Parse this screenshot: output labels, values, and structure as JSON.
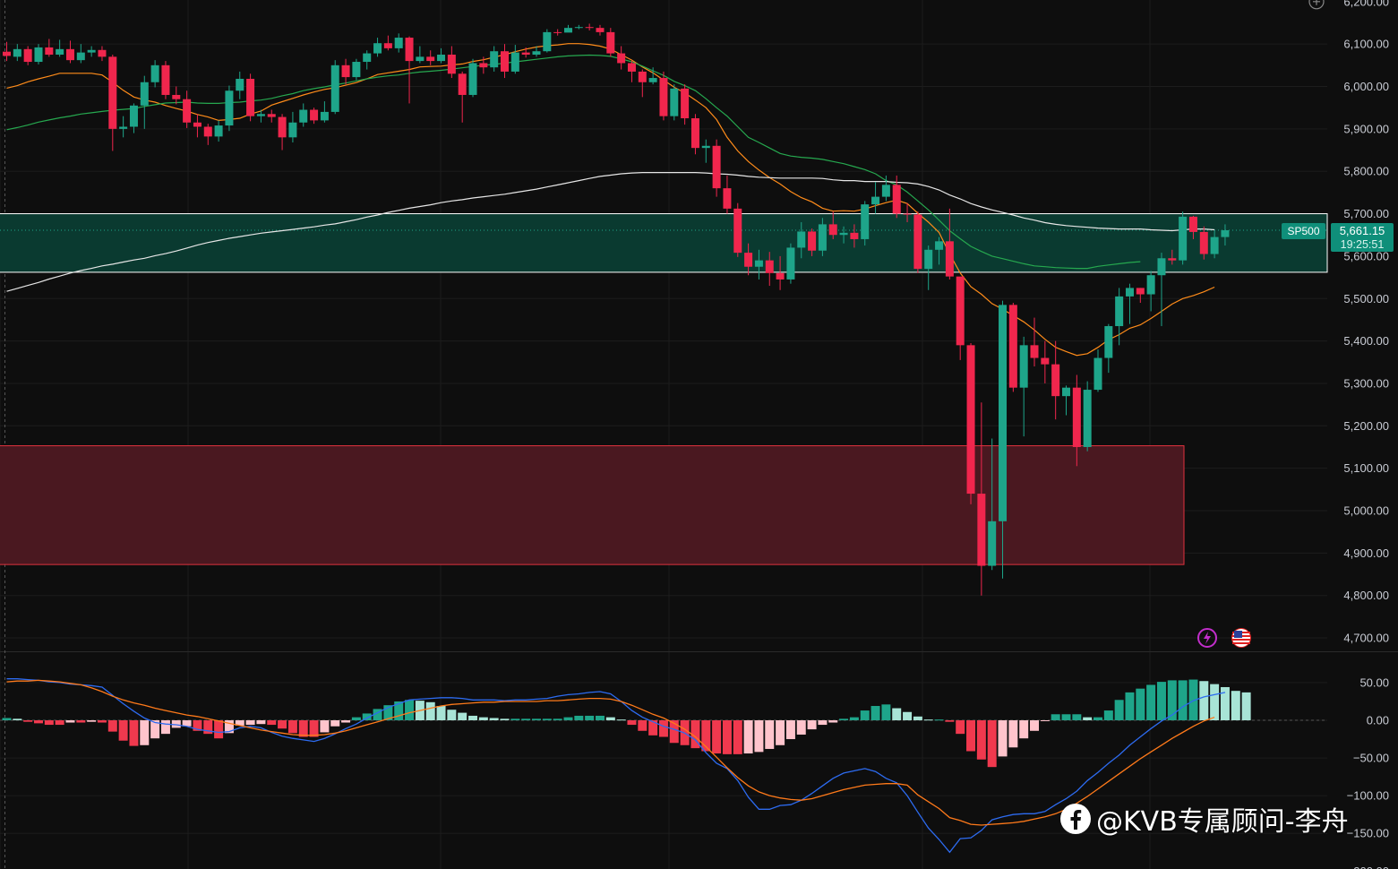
{
  "chart_data": {
    "type": "candlestick",
    "symbol": "SP500",
    "last_price": "5,661.15",
    "countdown": "19:25:51",
    "price_axis_ticks": [
      "6,100.00",
      "6,000.00",
      "5,900.00",
      "5,800.00",
      "5,700.00",
      "5,600.00",
      "5,500.00",
      "5,400.00",
      "5,300.00",
      "5,200.00",
      "5,100.00",
      "5,000.00",
      "4,900.00",
      "4,800.00",
      "4,700.00"
    ],
    "price_axis_top_partial": "6,200.00",
    "macd_axis_ticks": [
      "50.00",
      "0.00",
      "−50.00",
      "−100.00",
      "−150.00"
    ],
    "macd_axis_bottom_partial": "−200.00",
    "price_range": [
      4640,
      6210
    ],
    "macd_range": [
      -200,
      75
    ],
    "zones": [
      {
        "name": "upper-zone",
        "from": 5562,
        "to": 5700,
        "color": "#0a3a30",
        "border": "#ffffff"
      },
      {
        "name": "lower-zone",
        "from": 4873,
        "to": 5153,
        "color": "#4a1820",
        "border": "#e0323e"
      }
    ],
    "candles": [
      [
        6082,
        6072,
        6105,
        6060
      ],
      [
        6070,
        6088,
        6100,
        6060
      ],
      [
        6088,
        6058,
        6095,
        6050
      ],
      [
        6058,
        6092,
        6100,
        6052
      ],
      [
        6092,
        6075,
        6112,
        6070
      ],
      [
        6075,
        6088,
        6110,
        6070
      ],
      [
        6088,
        6062,
        6108,
        6055
      ],
      [
        6062,
        6080,
        6100,
        6055
      ],
      [
        6080,
        6086,
        6095,
        6070
      ],
      [
        6086,
        6070,
        6095,
        6060
      ],
      [
        6070,
        5900,
        6075,
        5848
      ],
      [
        5900,
        5905,
        5930,
        5880
      ],
      [
        5905,
        5955,
        5960,
        5890
      ],
      [
        5955,
        6010,
        6025,
        5900
      ],
      [
        6010,
        6050,
        6062,
        5998
      ],
      [
        6050,
        5980,
        6060,
        5970
      ],
      [
        5980,
        5970,
        6000,
        5958
      ],
      [
        5970,
        5915,
        5990,
        5902
      ],
      [
        5915,
        5905,
        5935,
        5880
      ],
      [
        5905,
        5882,
        5912,
        5862
      ],
      [
        5882,
        5908,
        5920,
        5870
      ],
      [
        5908,
        5990,
        6002,
        5895
      ],
      [
        5990,
        6018,
        6035,
        5970
      ],
      [
        6018,
        5930,
        6030,
        5918
      ],
      [
        5930,
        5935,
        5945,
        5915
      ],
      [
        5935,
        5928,
        5945,
        5915
      ],
      [
        5928,
        5880,
        5935,
        5850
      ],
      [
        5880,
        5915,
        5940,
        5868
      ],
      [
        5915,
        5945,
        5960,
        5905
      ],
      [
        5945,
        5920,
        5950,
        5912
      ],
      [
        5920,
        5940,
        5965,
        5915
      ],
      [
        5940,
        6050,
        6062,
        5935
      ],
      [
        6050,
        6022,
        6065,
        6005
      ],
      [
        6022,
        6058,
        6065,
        6015
      ],
      [
        6058,
        6078,
        6085,
        6040
      ],
      [
        6078,
        6102,
        6115,
        6070
      ],
      [
        6102,
        6090,
        6120,
        6085
      ],
      [
        6090,
        6115,
        6125,
        6080
      ],
      [
        6115,
        6060,
        6118,
        5960
      ],
      [
        6060,
        6070,
        6095,
        6055
      ],
      [
        6070,
        6060,
        6085,
        6050
      ],
      [
        6060,
        6075,
        6090,
        6055
      ],
      [
        6075,
        6030,
        6095,
        6020
      ],
      [
        6030,
        5980,
        6035,
        5915
      ],
      [
        5980,
        6055,
        6065,
        5975
      ],
      [
        6055,
        6045,
        6070,
        6030
      ],
      [
        6045,
        6083,
        6095,
        6035
      ],
      [
        6083,
        6035,
        6100,
        6020
      ],
      [
        6035,
        6080,
        6098,
        6030
      ],
      [
        6080,
        6075,
        6092,
        6068
      ],
      [
        6075,
        6083,
        6095,
        6070
      ],
      [
        6083,
        6128,
        6135,
        6080
      ],
      [
        6128,
        6127,
        6135,
        6120
      ],
      [
        6127,
        6138,
        6145,
        6130
      ],
      [
        6138,
        6140,
        6145,
        6135
      ],
      [
        6140,
        6138,
        6148,
        6132
      ],
      [
        6138,
        6128,
        6145,
        6120
      ],
      [
        6128,
        6078,
        6138,
        6070
      ],
      [
        6078,
        6055,
        6095,
        6040
      ],
      [
        6055,
        6035,
        6060,
        6010
      ],
      [
        6035,
        6010,
        6040,
        5975
      ],
      [
        6010,
        6020,
        6045,
        6005
      ],
      [
        6020,
        5930,
        6035,
        5920
      ],
      [
        5930,
        5995,
        6005,
        5920
      ],
      [
        5995,
        5925,
        6005,
        5910
      ],
      [
        5925,
        5855,
        5935,
        5840
      ],
      [
        5855,
        5860,
        5875,
        5820
      ],
      [
        5860,
        5760,
        5875,
        5740
      ],
      [
        5760,
        5712,
        5790,
        5700
      ],
      [
        5712,
        5608,
        5725,
        5598
      ],
      [
        5608,
        5575,
        5630,
        5555
      ],
      [
        5575,
        5590,
        5615,
        5545
      ],
      [
        5590,
        5560,
        5610,
        5530
      ],
      [
        5560,
        5545,
        5600,
        5520
      ],
      [
        5545,
        5620,
        5630,
        5535
      ],
      [
        5620,
        5658,
        5680,
        5595
      ],
      [
        5658,
        5613,
        5665,
        5600
      ],
      [
        5613,
        5675,
        5690,
        5600
      ],
      [
        5675,
        5650,
        5705,
        5640
      ],
      [
        5650,
        5655,
        5670,
        5630
      ],
      [
        5655,
        5640,
        5675,
        5620
      ],
      [
        5640,
        5722,
        5730,
        5625
      ],
      [
        5722,
        5740,
        5775,
        5700
      ],
      [
        5740,
        5768,
        5790,
        5730
      ],
      [
        5768,
        5700,
        5790,
        5690
      ],
      [
        5700,
        5698,
        5725,
        5680
      ],
      [
        5698,
        5570,
        5705,
        5560
      ],
      [
        5570,
        5615,
        5625,
        5520
      ],
      [
        5615,
        5635,
        5645,
        5580
      ],
      [
        5635,
        5552,
        5712,
        5545
      ],
      [
        5552,
        5390,
        5525,
        5355
      ],
      [
        5390,
        5040,
        5395,
        5015
      ],
      [
        5040,
        4870,
        5255,
        4800
      ],
      [
        4870,
        4975,
        5170,
        4860
      ],
      [
        4975,
        5485,
        5495,
        4840
      ],
      [
        5485,
        5290,
        5490,
        5280
      ],
      [
        5290,
        5390,
        5410,
        5175
      ],
      [
        5390,
        5360,
        5455,
        5340
      ],
      [
        5360,
        5345,
        5400,
        5300
      ],
      [
        5345,
        5270,
        5400,
        5215
      ],
      [
        5270,
        5290,
        5295,
        5225
      ],
      [
        5290,
        5150,
        5320,
        5105
      ],
      [
        5150,
        5285,
        5305,
        5140
      ],
      [
        5285,
        5360,
        5380,
        5280
      ],
      [
        5360,
        5435,
        5440,
        5325
      ],
      [
        5435,
        5505,
        5525,
        5390
      ],
      [
        5505,
        5525,
        5535,
        5440
      ],
      [
        5525,
        5510,
        5525,
        5490
      ],
      [
        5510,
        5555,
        5565,
        5470
      ],
      [
        5555,
        5595,
        5608,
        5435
      ],
      [
        5595,
        5590,
        5615,
        5580
      ],
      [
        5590,
        5693,
        5705,
        5580
      ],
      [
        5693,
        5657,
        5695,
        5640
      ],
      [
        5657,
        5605,
        5670,
        5592
      ],
      [
        5605,
        5645,
        5660,
        5595
      ],
      [
        5645,
        5661,
        5675,
        5625
      ]
    ],
    "ma_series": [
      {
        "color": "#ff8c1a",
        "start": 0,
        "values": [
          5996,
          6002,
          6011,
          6018,
          6024,
          6031,
          6031,
          6031,
          6031,
          6027,
          6010,
          5991,
          5975,
          5968,
          5963,
          5955,
          5948,
          5942,
          5934,
          5928,
          5920,
          5922,
          5925,
          5935,
          5942,
          5956,
          5964,
          5972,
          5980,
          5987,
          5993,
          5997,
          6003,
          6009,
          6018,
          6028,
          6032,
          6036,
          6040,
          6046,
          6047,
          6048,
          6051,
          6053,
          6059,
          6063,
          6069,
          6075,
          6082,
          6088,
          6093,
          6096,
          6098,
          6101,
          6101,
          6099,
          6095,
          6088,
          6075,
          6062,
          6046,
          6032,
          6015,
          5998,
          5985,
          5968,
          5950,
          5922,
          5880,
          5848,
          5823,
          5803,
          5785,
          5770,
          5752,
          5738,
          5728,
          5713,
          5706,
          5707,
          5706,
          5711,
          5719,
          5726,
          5732,
          5724,
          5701,
          5680,
          5656,
          5605,
          5560,
          5528,
          5510,
          5488,
          5475,
          5460,
          5445,
          5426,
          5404,
          5385,
          5375,
          5366,
          5370,
          5385,
          5403,
          5415,
          5430,
          5438,
          5453,
          5470,
          5487,
          5500,
          5507,
          5516,
          5527
        ]
      },
      {
        "color": "#26a84f",
        "start": 0,
        "values": [
          5898,
          5903,
          5909,
          5916,
          5921,
          5926,
          5930,
          5935,
          5938,
          5941,
          5944,
          5946,
          5948,
          5953,
          5957,
          5961,
          5962,
          5963,
          5961,
          5960,
          5960,
          5962,
          5963,
          5966,
          5968,
          5972,
          5978,
          5983,
          5990,
          5995,
          5999,
          6004,
          6008,
          6013,
          6018,
          6022,
          6025,
          6027,
          6031,
          6034,
          6036,
          6038,
          6041,
          6044,
          6047,
          6050,
          6052,
          6055,
          6058,
          6061,
          6064,
          6067,
          6070,
          6072,
          6073,
          6074,
          6073,
          6071,
          6065,
          6058,
          6048,
          6037,
          6026,
          6012,
          6002,
          5990,
          5971,
          5950,
          5930,
          5905,
          5880,
          5868,
          5855,
          5842,
          5836,
          5833,
          5831,
          5828,
          5823,
          5818,
          5811,
          5804,
          5794,
          5778,
          5768,
          5751,
          5730,
          5709,
          5685,
          5660,
          5641,
          5623,
          5611,
          5600,
          5594,
          5588,
          5582,
          5577,
          5575,
          5573,
          5572,
          5571,
          5571,
          5576,
          5579,
          5582,
          5585,
          5587
        ]
      },
      {
        "color": "#e6e6e6",
        "start": 0,
        "values": [
          5517,
          5524,
          5531,
          5538,
          5546,
          5553,
          5560,
          5566,
          5571,
          5577,
          5581,
          5586,
          5591,
          5595,
          5601,
          5606,
          5612,
          5619,
          5626,
          5632,
          5637,
          5642,
          5646,
          5650,
          5654,
          5657,
          5660,
          5663,
          5666,
          5669,
          5673,
          5676,
          5681,
          5686,
          5692,
          5697,
          5703,
          5708,
          5713,
          5717,
          5721,
          5726,
          5730,
          5733,
          5737,
          5740,
          5743,
          5746,
          5750,
          5754,
          5758,
          5763,
          5768,
          5773,
          5778,
          5783,
          5788,
          5791,
          5794,
          5796,
          5797,
          5797,
          5797,
          5797,
          5797,
          5797,
          5796,
          5794,
          5793,
          5791,
          5788,
          5786,
          5785,
          5784,
          5784,
          5784,
          5784,
          5783,
          5780,
          5778,
          5778,
          5776,
          5776,
          5776,
          5774,
          5773,
          5770,
          5764,
          5756,
          5744,
          5735,
          5724,
          5716,
          5709,
          5703,
          5697,
          5690,
          5685,
          5679,
          5675,
          5672,
          5670,
          5668,
          5666,
          5665,
          5664,
          5664,
          5664,
          5662,
          5661,
          5660,
          5662,
          5664,
          5664,
          5662
        ]
      }
    ],
    "macd_hist": [
      3,
      2,
      -2,
      -4,
      -6,
      -6,
      -3,
      -3,
      -2,
      -3,
      -15,
      -27,
      -34,
      -33,
      -24,
      -18,
      -10,
      -8,
      -14,
      -18,
      -24,
      -17,
      -7,
      -6,
      -5,
      -6,
      -11,
      -17,
      -22,
      -22,
      -16,
      -8,
      -3,
      4,
      9,
      15,
      20,
      25,
      27,
      26,
      24,
      19,
      14,
      10,
      6,
      4,
      3,
      2,
      2,
      2,
      2,
      2,
      2,
      4,
      6,
      6,
      6,
      4,
      1,
      -6,
      -14,
      -20,
      -22,
      -30,
      -33,
      -37,
      -41,
      -44,
      -45,
      -45,
      -44,
      -42,
      -38,
      -33,
      -25,
      -19,
      -12,
      -6,
      -3,
      2,
      4,
      13,
      19,
      21,
      16,
      11,
      5,
      1,
      1,
      -2,
      -18,
      -41,
      -52,
      -62,
      -48,
      -36,
      -24,
      -14,
      -1,
      8,
      8,
      8,
      4,
      4,
      13,
      27,
      37,
      42,
      47,
      51,
      53,
      53,
      54,
      52,
      48,
      44,
      39,
      37
    ],
    "macd_line": [
      55,
      55,
      54,
      53,
      51,
      50,
      48,
      47,
      46,
      44,
      33,
      22,
      12,
      3,
      -3,
      -5,
      -6,
      -8,
      -12,
      -14,
      -16,
      -15,
      -10,
      -8,
      -10,
      -16,
      -21,
      -24,
      -26,
      -28,
      -24,
      -18,
      -11,
      -5,
      3,
      10,
      17,
      22,
      27,
      28,
      29,
      30,
      30,
      29,
      27,
      27,
      27,
      26,
      27,
      27,
      28,
      29,
      32,
      34,
      35,
      37,
      38,
      35,
      25,
      13,
      4,
      -2,
      -8,
      -12,
      -17,
      -26,
      -43,
      -57,
      -64,
      -80,
      -102,
      -118,
      -118,
      -113,
      -112,
      -106,
      -97,
      -87,
      -77,
      -70,
      -67,
      -64,
      -68,
      -77,
      -83,
      -100,
      -122,
      -143,
      -158,
      -175,
      -157,
      -156,
      -146,
      -132,
      -128,
      -125,
      -124,
      -124,
      -121,
      -112,
      -104,
      -94,
      -80,
      -69,
      -57,
      -46,
      -33,
      -22,
      -11,
      -1,
      7,
      18,
      26,
      31,
      34,
      37
    ],
    "macd_signal": [
      51,
      52,
      52,
      53,
      52,
      51,
      49,
      47,
      43,
      38,
      32,
      27,
      23,
      20,
      16,
      13,
      10,
      7,
      5,
      2,
      -1,
      -4,
      -7,
      -10,
      -13,
      -15,
      -17,
      -19,
      -20,
      -20,
      -19,
      -17,
      -14,
      -10,
      -6,
      -2,
      2,
      6,
      10,
      13,
      16,
      19,
      21,
      22,
      23,
      24,
      24,
      25,
      25,
      25,
      25,
      26,
      26,
      27,
      28,
      29,
      29,
      28,
      25,
      20,
      14,
      8,
      3,
      -4,
      -12,
      -22,
      -35,
      -49,
      -63,
      -76,
      -87,
      -95,
      -100,
      -103,
      -105,
      -106,
      -104,
      -100,
      -96,
      -92,
      -89,
      -86,
      -85,
      -84,
      -84,
      -86,
      -99,
      -108,
      -117,
      -129,
      -133,
      -138,
      -139,
      -138,
      -137,
      -136,
      -134,
      -131,
      -128,
      -124,
      -118,
      -110,
      -101,
      -91,
      -81,
      -71,
      -61,
      -51,
      -42,
      -33,
      -24,
      -16,
      -8,
      -1,
      4
    ]
  },
  "watermark": "@KVB专属顾问-李舟",
  "colors": {
    "up": "#1ea58a",
    "down": "#f0264d",
    "hist_up_strong": "#1ea58a",
    "hist_up_weak": "#a8e4d6",
    "hist_down_strong": "#f0394e",
    "hist_down_weak": "#ffc4cc"
  }
}
